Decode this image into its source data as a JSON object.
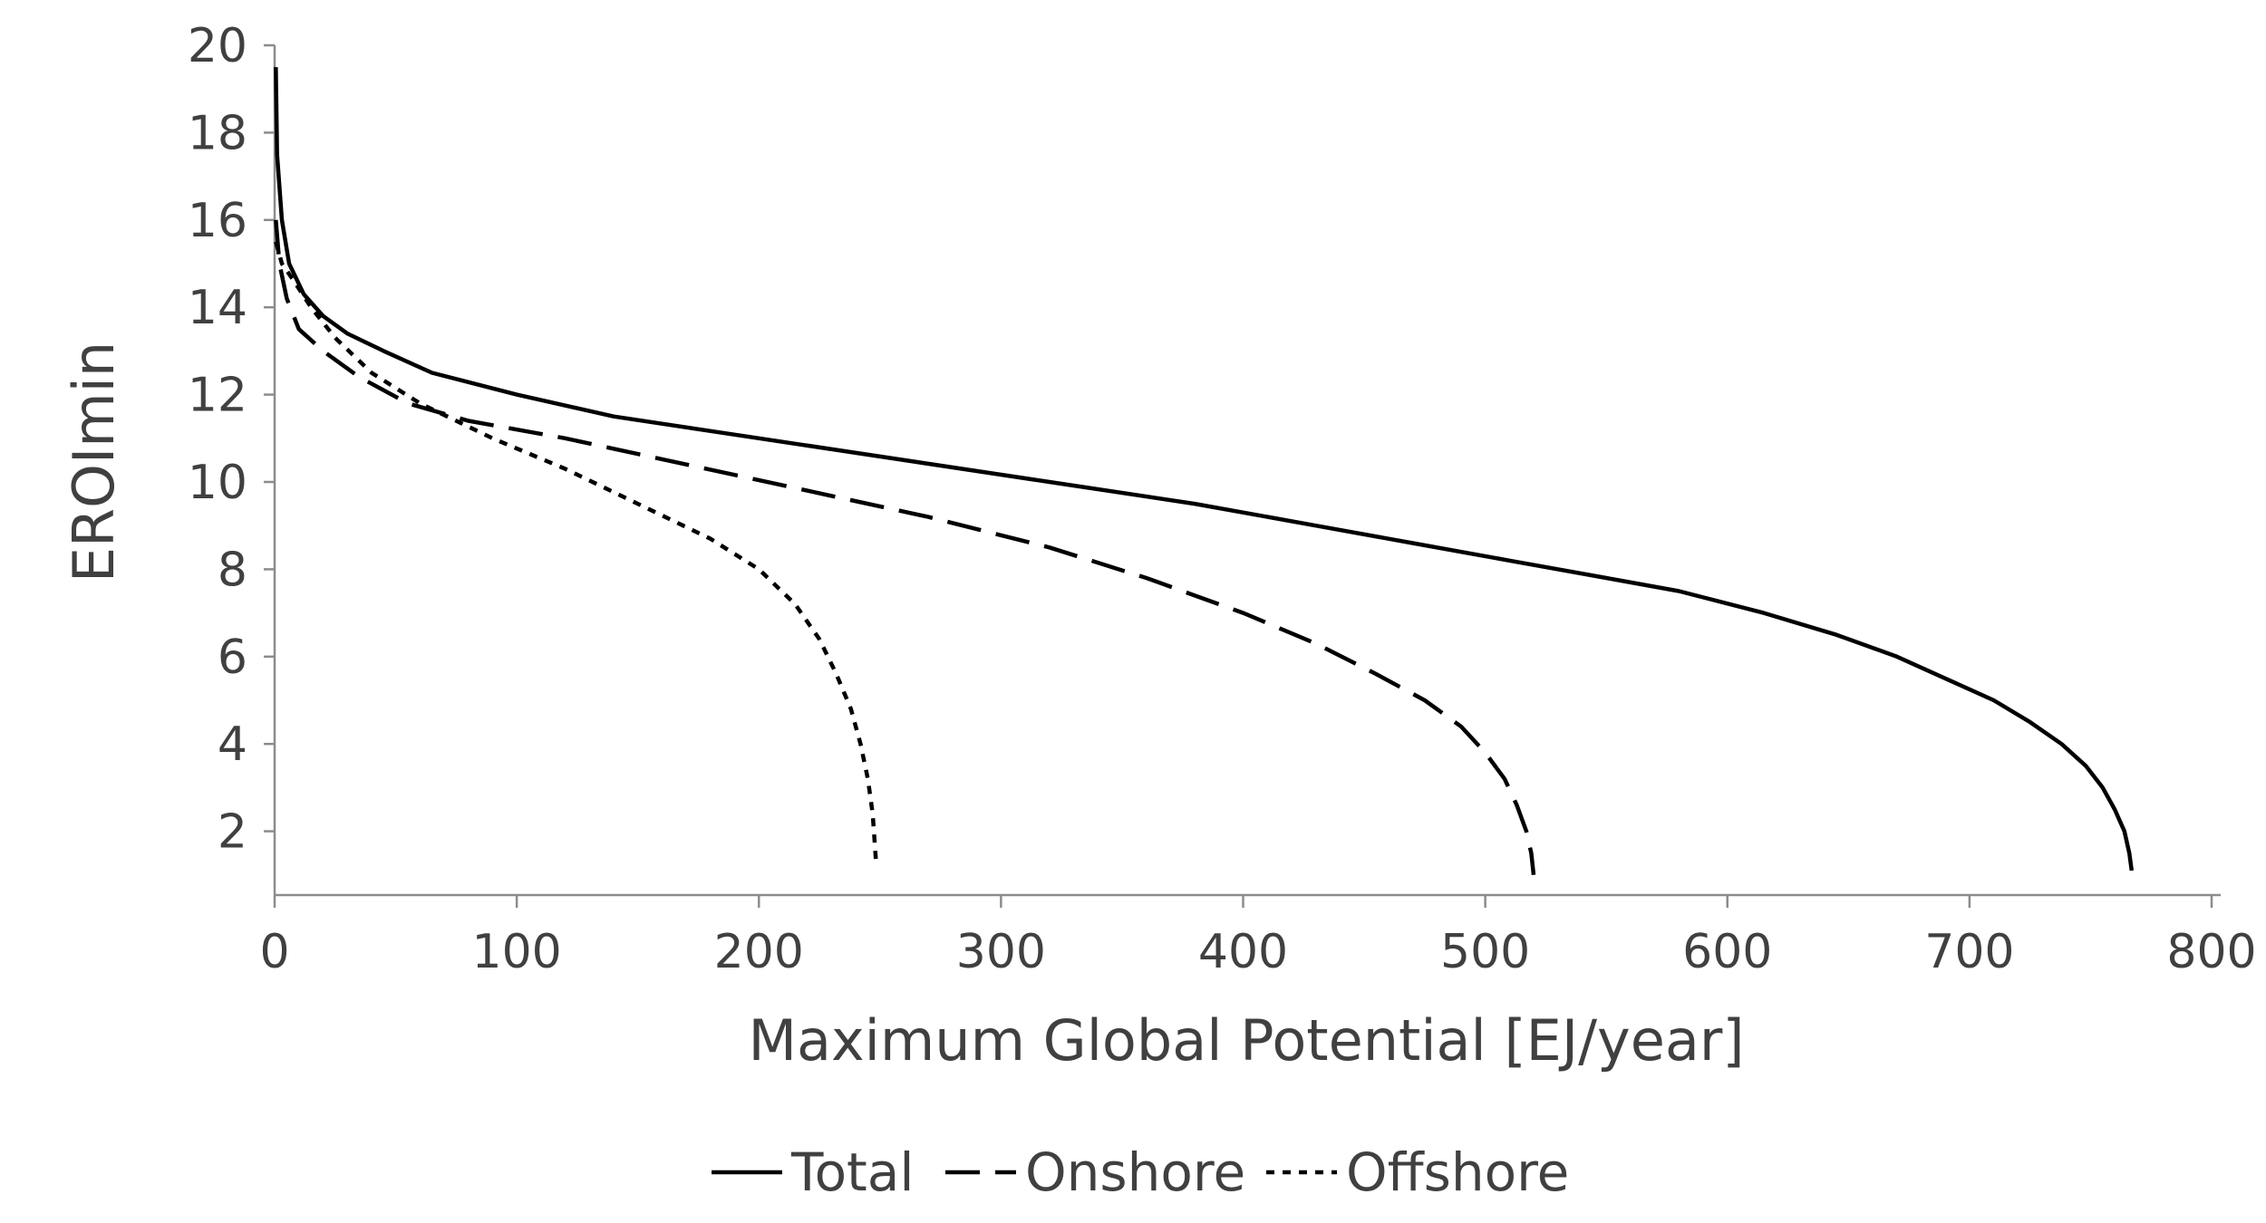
{
  "chart_data": {
    "type": "line",
    "title": "",
    "xlabel": "Maximum Global Potential [EJ/year]",
    "ylabel": "EROImin",
    "xlim": [
      0,
      800
    ],
    "ylim": [
      1,
      20
    ],
    "x_ticks": [
      "0",
      "100",
      "200",
      "300",
      "400",
      "500",
      "600",
      "700",
      "800"
    ],
    "y_ticks": [
      "2",
      "4",
      "6",
      "8",
      "10",
      "12",
      "14",
      "16",
      "18",
      "20"
    ],
    "grid": false,
    "legend_position": "bottom",
    "series": [
      {
        "name": "Total",
        "style": "solid",
        "color": "#000000",
        "points": [
          [
            0.5,
            19.5
          ],
          [
            1,
            17.5
          ],
          [
            3,
            16
          ],
          [
            6,
            15
          ],
          [
            12,
            14.3
          ],
          [
            20,
            13.8
          ],
          [
            30,
            13.4
          ],
          [
            45,
            13
          ],
          [
            65,
            12.5
          ],
          [
            100,
            12
          ],
          [
            140,
            11.5
          ],
          [
            200,
            11
          ],
          [
            260,
            10.5
          ],
          [
            320,
            10
          ],
          [
            380,
            9.5
          ],
          [
            430,
            9
          ],
          [
            470,
            8.6
          ],
          [
            510,
            8.2
          ],
          [
            550,
            7.8
          ],
          [
            580,
            7.5
          ],
          [
            615,
            7
          ],
          [
            645,
            6.5
          ],
          [
            670,
            6
          ],
          [
            690,
            5.5
          ],
          [
            710,
            5
          ],
          [
            725,
            4.5
          ],
          [
            738,
            4
          ],
          [
            748,
            3.5
          ],
          [
            755,
            3
          ],
          [
            760,
            2.5
          ],
          [
            764,
            2
          ],
          [
            766,
            1.5
          ],
          [
            767,
            1.1
          ]
        ]
      },
      {
        "name": "Onshore",
        "style": "dashed",
        "color": "#000000",
        "points": [
          [
            0.5,
            16
          ],
          [
            2,
            15
          ],
          [
            5,
            14.2
          ],
          [
            10,
            13.5
          ],
          [
            20,
            13
          ],
          [
            35,
            12.4
          ],
          [
            55,
            11.8
          ],
          [
            80,
            11.4
          ],
          [
            120,
            11
          ],
          [
            170,
            10.4
          ],
          [
            220,
            9.8
          ],
          [
            270,
            9.2
          ],
          [
            320,
            8.5
          ],
          [
            360,
            7.8
          ],
          [
            400,
            7
          ],
          [
            430,
            6.3
          ],
          [
            455,
            5.6
          ],
          [
            475,
            5
          ],
          [
            490,
            4.4
          ],
          [
            500,
            3.8
          ],
          [
            508,
            3.2
          ],
          [
            513,
            2.6
          ],
          [
            517,
            2
          ],
          [
            519,
            1.5
          ],
          [
            520,
            1
          ]
        ]
      },
      {
        "name": "Offshore",
        "style": "dotted",
        "color": "#000000",
        "points": [
          [
            0.5,
            15.5
          ],
          [
            3,
            15
          ],
          [
            8,
            14.6
          ],
          [
            15,
            14
          ],
          [
            25,
            13.3
          ],
          [
            40,
            12.5
          ],
          [
            60,
            11.8
          ],
          [
            90,
            11
          ],
          [
            120,
            10.3
          ],
          [
            150,
            9.5
          ],
          [
            180,
            8.7
          ],
          [
            200,
            8
          ],
          [
            215,
            7.2
          ],
          [
            225,
            6.4
          ],
          [
            232,
            5.6
          ],
          [
            238,
            4.8
          ],
          [
            242,
            4
          ],
          [
            245,
            3.2
          ],
          [
            247,
            2.4
          ],
          [
            248,
            1.6
          ],
          [
            248.5,
            1.2
          ]
        ]
      }
    ]
  }
}
